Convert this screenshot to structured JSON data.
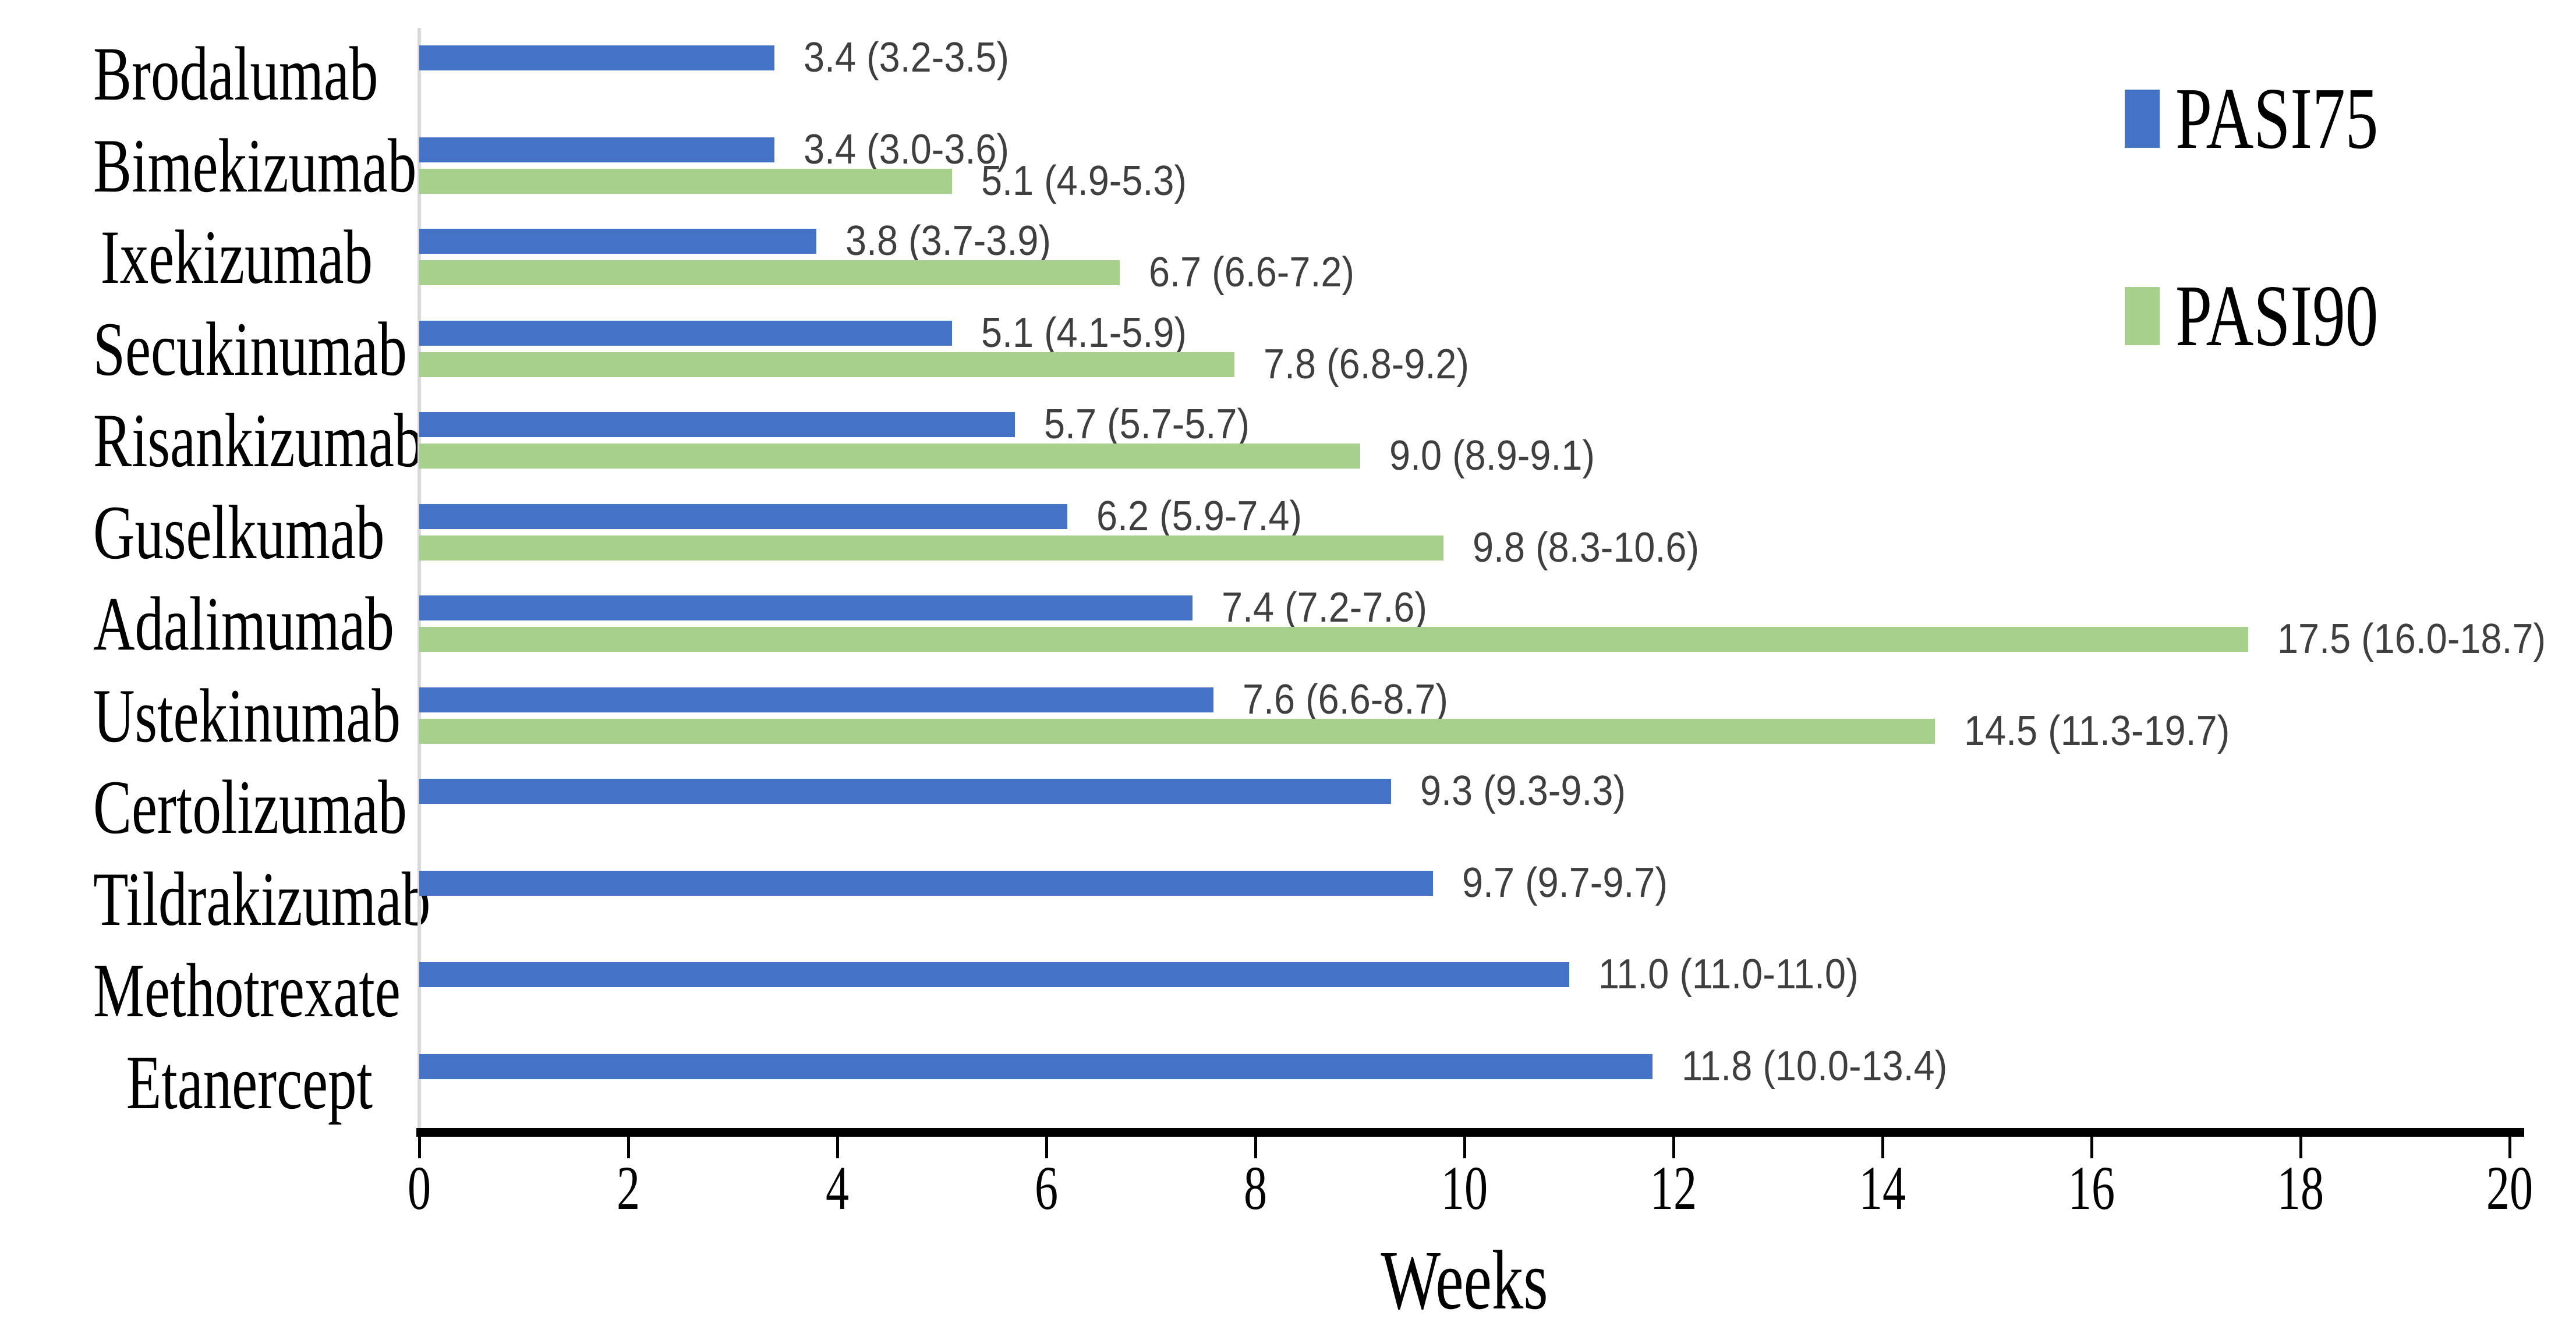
{
  "chart_data": {
    "type": "bar",
    "orientation": "horizontal",
    "xlabel": "Weeks",
    "xlim": [
      0,
      20
    ],
    "xticks": [
      0,
      2,
      4,
      6,
      8,
      10,
      12,
      14,
      16,
      18,
      20
    ],
    "grid": false,
    "legend_position": "top-right",
    "categories": [
      "Brodalumab",
      "Bimekizumab",
      "Ixekizumab",
      "Secukinumab",
      "Risankizumab",
      "Guselkumab",
      "Adalimumab",
      "Ustekinumab",
      "Certolizumab",
      "Tildrakizumab",
      "Methotrexate",
      "Etanercept"
    ],
    "series": [
      {
        "name": "PASI75",
        "color": "#4472C4",
        "values": [
          3.4,
          3.4,
          3.8,
          5.1,
          5.7,
          6.2,
          7.4,
          7.6,
          9.3,
          9.7,
          11.0,
          11.8
        ],
        "labels": [
          "3.4 (3.2-3.5)",
          "3.4 (3.0-3.6)",
          "3.8 (3.7-3.9)",
          "5.1 (4.1-5.9)",
          "5.7 (5.7-5.7)",
          "6.2 (5.9-7.4)",
          "7.4 (7.2-7.6)",
          "7.6 (6.6-8.7)",
          "9.3 (9.3-9.3)",
          "9.7 (9.7-9.7)",
          "11.0 (11.0-11.0)",
          "11.8 (10.0-13.4)"
        ]
      },
      {
        "name": "PASI90",
        "color": "#A8D08D",
        "values": [
          null,
          5.1,
          6.7,
          7.8,
          9.0,
          9.8,
          17.5,
          14.5,
          null,
          null,
          null,
          null
        ],
        "labels": [
          null,
          "5.1 (4.9-5.3)",
          "6.7 (6.6-7.2)",
          "7.8 (6.8-9.2)",
          "9.0 (8.9-9.1)",
          "9.8 (8.3-10.6)",
          "17.5 (16.0-18.7)",
          "14.5 (11.3-19.7)",
          null,
          null,
          null,
          null
        ]
      }
    ],
    "colors": {
      "value_label": "#3F3F3F",
      "axis_line": "#000000",
      "category_axis_line": "#D9D9D9"
    }
  }
}
